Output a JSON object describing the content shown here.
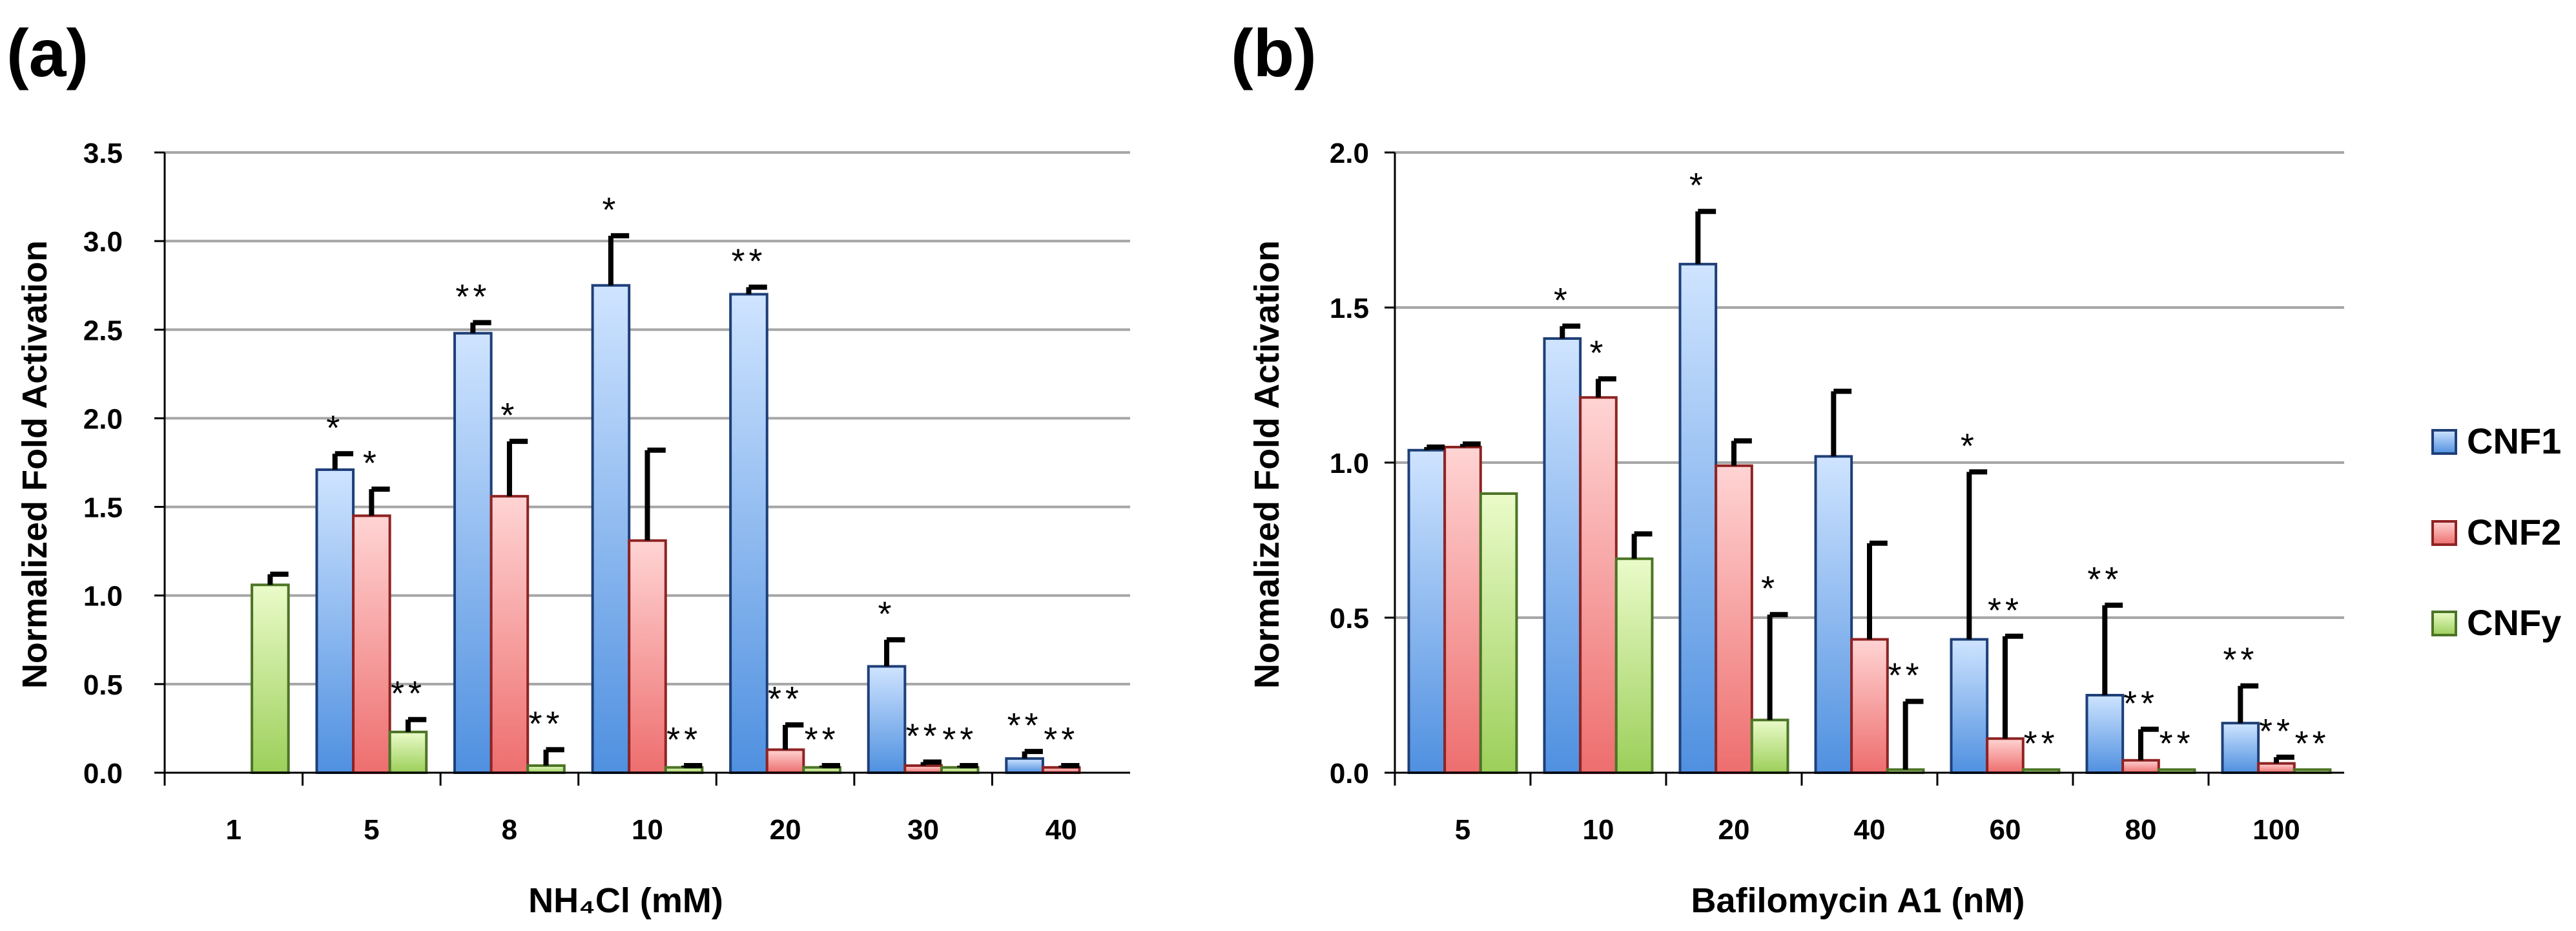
{
  "colors": {
    "CNF1": {
      "top": "#cfe4ff",
      "bottom": "#4f90e0",
      "stroke": "#1e3f78"
    },
    "CNF2": {
      "top": "#ffd4d4",
      "bottom": "#ee6e6e",
      "stroke": "#8f2323"
    },
    "CNFy": {
      "top": "#eafbc9",
      "bottom": "#9ccf5a",
      "stroke": "#4c7426"
    }
  },
  "legend": {
    "position": "right",
    "entries": [
      "CNF1",
      "CNF2",
      "CNFy"
    ]
  },
  "chart_data": [
    {
      "type": "bar",
      "panel_label": "(a)",
      "xlabel": "NH₄Cl (mM)",
      "ylabel": "Normalized Fold Activation",
      "ylim": [
        0,
        3.5
      ],
      "yticks": [
        "0.0",
        "0.5",
        "1.0",
        "1.5",
        "2.0",
        "2.5",
        "3.0",
        "3.5"
      ],
      "grid": true,
      "categories": [
        "1",
        "5",
        "8",
        "10",
        "20",
        "30",
        "40"
      ],
      "series": [
        {
          "name": "CNF1",
          "values": [
            null,
            1.71,
            2.48,
            2.75,
            2.7,
            0.6,
            0.08
          ],
          "errors": [
            null,
            0.09,
            0.06,
            0.28,
            0.04,
            0.15,
            0.04
          ],
          "annotations": [
            "",
            "*",
            "**",
            "*",
            "**",
            "*",
            "**"
          ]
        },
        {
          "name": "CNF2",
          "values": [
            null,
            1.45,
            1.56,
            1.31,
            0.13,
            0.04,
            0.03
          ],
          "errors": [
            null,
            0.15,
            0.31,
            0.51,
            0.14,
            0.02,
            0.01
          ],
          "annotations": [
            "",
            "*",
            "*",
            "",
            "**",
            "**",
            "**"
          ]
        },
        {
          "name": "CNFy",
          "values": [
            1.06,
            0.23,
            0.04,
            0.03,
            0.03,
            0.03,
            0.0
          ],
          "errors": [
            0.06,
            0.07,
            0.09,
            0.01,
            0.01,
            0.01,
            0.0
          ],
          "annotations": [
            "",
            "**",
            "**",
            "**",
            "**",
            "**",
            ""
          ]
        }
      ]
    },
    {
      "type": "bar",
      "panel_label": "(b)",
      "xlabel": "Bafilomycin A1 (nM)",
      "ylabel": "Normalized Fold Activation",
      "ylim": [
        0,
        2.0
      ],
      "yticks": [
        "0.0",
        "0.5",
        "1.0",
        "1.5",
        "2.0"
      ],
      "grid": true,
      "categories": [
        "5",
        "10",
        "20",
        "40",
        "60",
        "80",
        "100"
      ],
      "series": [
        {
          "name": "CNF1",
          "values": [
            1.04,
            1.4,
            1.64,
            1.02,
            0.43,
            0.25,
            0.16
          ],
          "errors": [
            0.01,
            0.04,
            0.17,
            0.21,
            0.54,
            0.29,
            0.12
          ],
          "annotations": [
            "",
            "*",
            "*",
            "",
            "*",
            "**",
            "**"
          ]
        },
        {
          "name": "CNF2",
          "values": [
            1.05,
            1.21,
            0.99,
            0.43,
            0.11,
            0.04,
            0.03
          ],
          "errors": [
            0.01,
            0.06,
            0.08,
            0.31,
            0.33,
            0.1,
            0.02
          ],
          "annotations": [
            "",
            "*",
            "",
            "",
            "**",
            "**",
            "**"
          ]
        },
        {
          "name": "CNFy",
          "values": [
            0.9,
            0.69,
            0.17,
            0.01,
            0.01,
            0.01,
            0.01
          ],
          "errors": [
            0.0,
            0.08,
            0.34,
            0.22,
            0.0,
            0.0,
            0.0
          ],
          "annotations": [
            "",
            "",
            "*",
            "**",
            "**",
            "**",
            "**"
          ]
        }
      ]
    }
  ]
}
